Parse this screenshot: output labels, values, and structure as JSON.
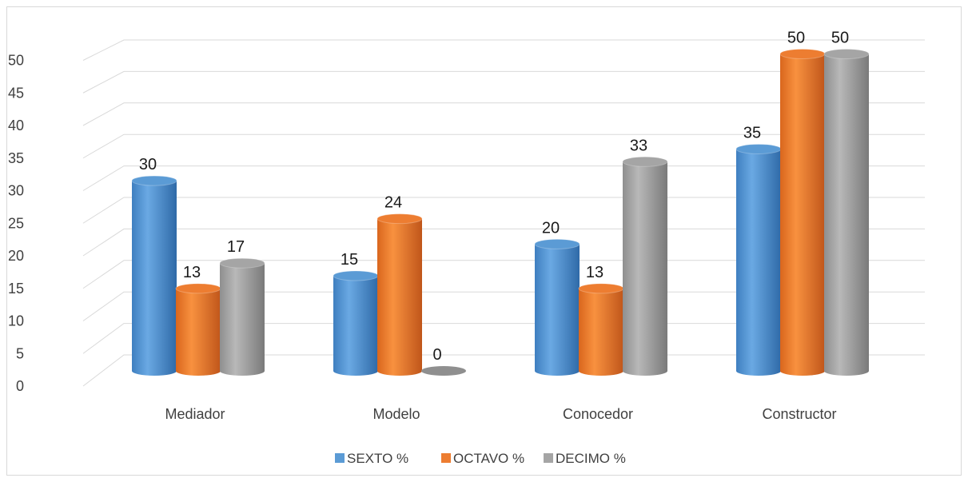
{
  "chart_data": {
    "type": "bar",
    "subtype": "3d-cylinder",
    "categories": [
      "Mediador",
      "Modelo",
      "Conocedor",
      "Constructor"
    ],
    "series": [
      {
        "name": "SEXTO %",
        "values": [
          30,
          15,
          20,
          35
        ],
        "color": "#5b9bd5"
      },
      {
        "name": "OCTAVO %",
        "values": [
          13,
          24,
          13,
          50
        ],
        "color": "#ed7d31"
      },
      {
        "name": "DECIMO %",
        "values": [
          17,
          0,
          33,
          50
        ],
        "color": "#a5a5a5"
      }
    ],
    "yticks": [
      "0",
      "5",
      "10",
      "15",
      "20",
      "25",
      "30",
      "35",
      "40",
      "45",
      "50"
    ],
    "ylim": [
      0,
      50
    ],
    "data_labels": true,
    "grid": true,
    "legend_position": "bottom"
  }
}
